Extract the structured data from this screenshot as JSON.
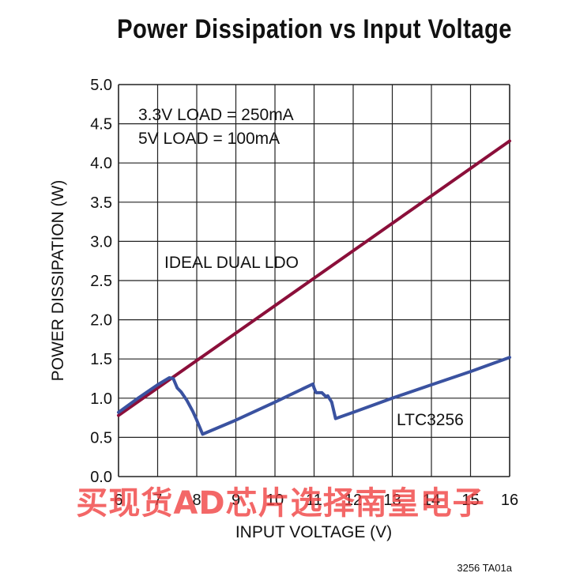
{
  "chart_data": {
    "type": "line",
    "title": "Power Dissipation vs Input Voltage",
    "xlabel": "INPUT VOLTAGE (V)",
    "ylabel": "POWER DISSIPATION (W)",
    "xlim": [
      6,
      16
    ],
    "ylim": [
      0,
      5
    ],
    "xticks": [
      "6",
      "7",
      "8",
      "9",
      "10",
      "11",
      "12",
      "13",
      "14",
      "15",
      "16"
    ],
    "yticks": [
      "0.0",
      "0.5",
      "1.0",
      "1.5",
      "2.0",
      "2.5",
      "3.0",
      "3.5",
      "4.0",
      "4.5",
      "5.0"
    ],
    "grid": true,
    "annotations": [
      "3.3V LOAD = 250mA",
      "5V LOAD = 100mA"
    ],
    "series": [
      {
        "name": "IDEAL DUAL LDO",
        "color": "#8b0f3a",
        "x": [
          6,
          16
        ],
        "y": [
          0.78,
          4.28
        ]
      },
      {
        "name": "LTC3256",
        "color": "#3a52a0",
        "x": [
          6,
          6.5,
          7.0,
          7.3,
          7.4,
          7.5,
          7.6,
          7.75,
          7.9,
          8.0,
          8.15,
          9.0,
          10.0,
          10.5,
          10.97,
          11.0,
          11.05,
          11.2,
          11.3,
          11.35,
          11.45,
          11.55,
          12.0,
          13.0,
          14.0,
          15.0,
          16.0
        ],
        "y": [
          0.82,
          1.0,
          1.17,
          1.26,
          1.25,
          1.13,
          1.08,
          0.97,
          0.83,
          0.72,
          0.54,
          0.72,
          0.95,
          1.07,
          1.18,
          1.13,
          1.07,
          1.07,
          1.02,
          1.03,
          0.95,
          0.74,
          0.82,
          1.0,
          1.17,
          1.34,
          1.52
        ]
      }
    ]
  },
  "watermark": "买现货AD芯片选择南皇电子",
  "figure_id": "3256 TA01a"
}
